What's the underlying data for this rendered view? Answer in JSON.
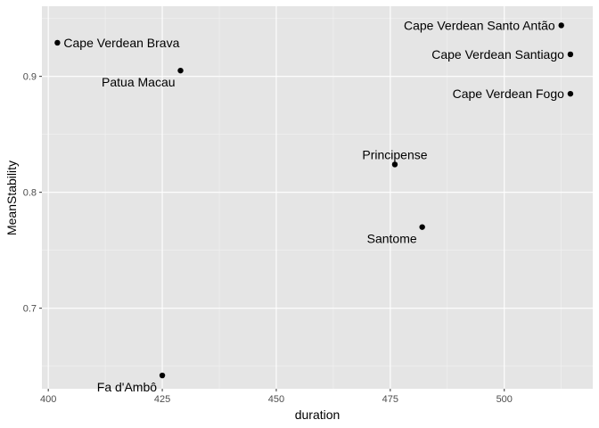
{
  "chart_data": {
    "type": "scatter",
    "title": "",
    "xlabel": "duration",
    "ylabel": "MeanStability",
    "xlim": [
      398.6,
      519.4
    ],
    "ylim": [
      0.6305,
      0.9605
    ],
    "x_ticks": [
      400,
      425,
      450,
      475,
      500
    ],
    "y_ticks": [
      0.7,
      0.8,
      0.9
    ],
    "x_tick_labels": [
      "400",
      "425",
      "450",
      "475",
      "500"
    ],
    "y_tick_labels": [
      "0.7",
      "0.8",
      "0.9"
    ],
    "grid": true,
    "points": [
      {
        "label": "Cape Verdean Brava",
        "x": 402,
        "y": 0.929,
        "label_side": "right"
      },
      {
        "label": "Patua Macau",
        "x": 429,
        "y": 0.905,
        "label_side": "below-left"
      },
      {
        "label": "Cape Verdean Santo Antão",
        "x": 512.5,
        "y": 0.944,
        "label_side": "left"
      },
      {
        "label": "Cape Verdean Santiago",
        "x": 514.5,
        "y": 0.919,
        "label_side": "left"
      },
      {
        "label": "Cape Verdean Fogo",
        "x": 514.5,
        "y": 0.885,
        "label_side": "left"
      },
      {
        "label": "Principense",
        "x": 476,
        "y": 0.824,
        "label_side": "above"
      },
      {
        "label": "Santome",
        "x": 482,
        "y": 0.77,
        "label_side": "below-left"
      },
      {
        "label": "Fa d'Ambô",
        "x": 425,
        "y": 0.642,
        "label_side": "below-left"
      }
    ]
  },
  "colors": {
    "panel_background": "#e5e5e5",
    "grid_major": "#ffffff",
    "point": "#000000"
  }
}
